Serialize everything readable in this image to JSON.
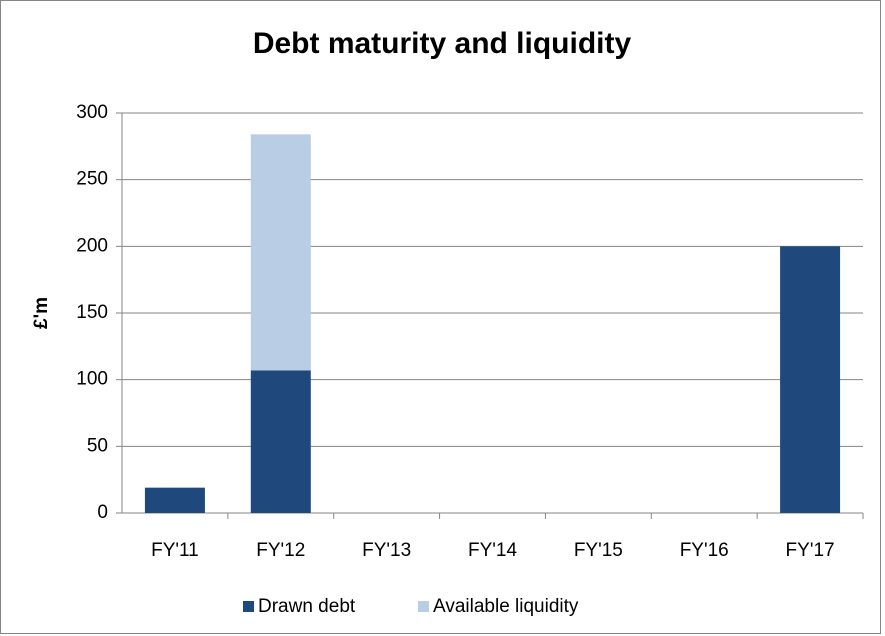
{
  "chart_data": {
    "type": "stacked_bar",
    "title": "Debt maturity and liquidity",
    "y_label": "£'m",
    "categories": [
      "FY'11",
      "FY'12",
      "FY'13",
      "FY'14",
      "FY'15",
      "FY'16",
      "FY'17"
    ],
    "series": [
      {
        "name": "Drawn debt",
        "color": "#1f497d",
        "values": [
          19,
          107,
          0,
          0,
          0,
          0,
          200
        ]
      },
      {
        "name": "Available liquidity",
        "color": "#b9cde5",
        "values": [
          0,
          177,
          0,
          0,
          0,
          0,
          0
        ]
      }
    ],
    "ylim": [
      0,
      300
    ],
    "yticks": [
      0,
      50,
      100,
      150,
      200,
      250,
      300
    ],
    "grid": true,
    "legend": "bottom"
  }
}
